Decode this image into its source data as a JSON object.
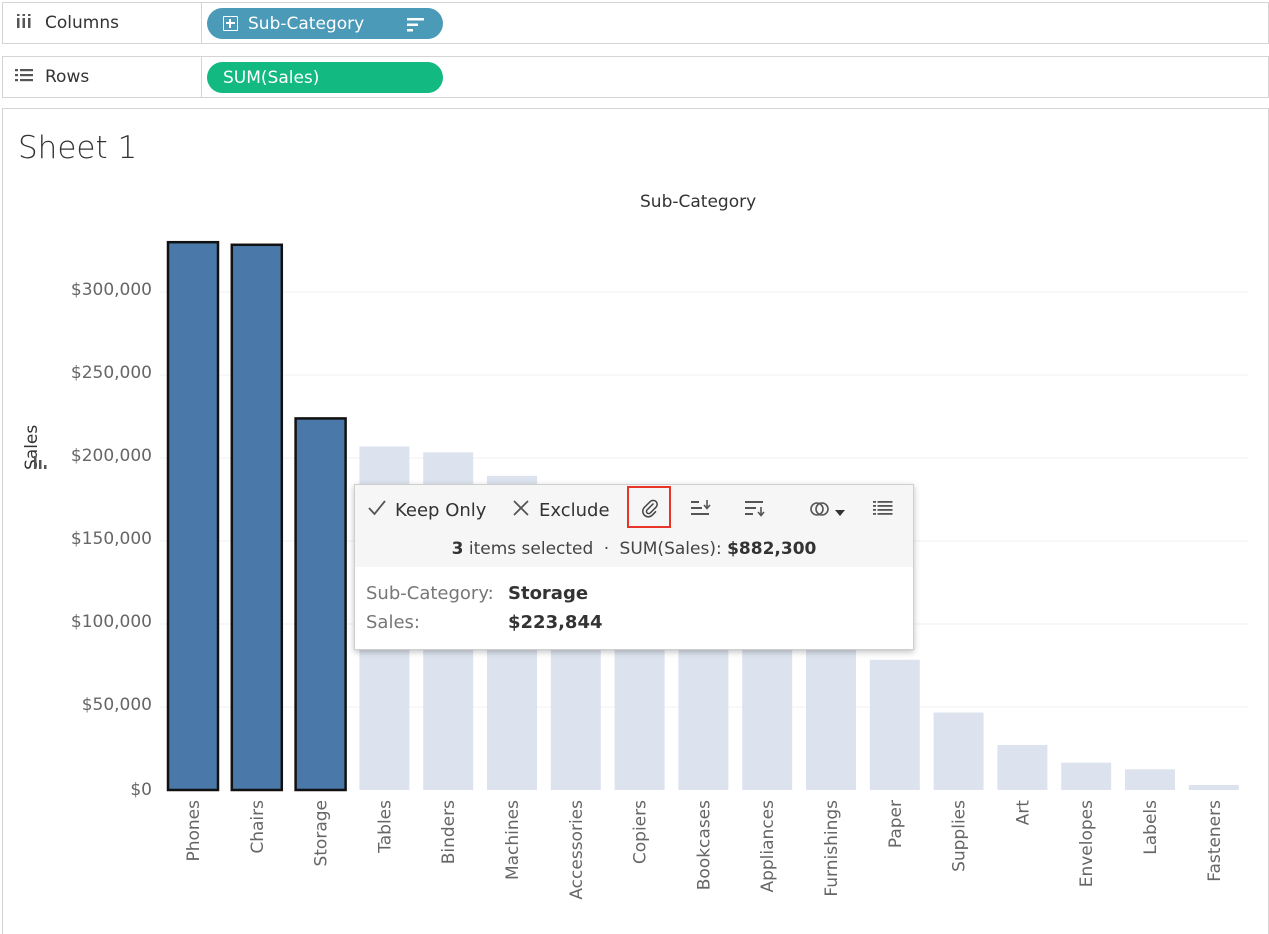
{
  "shelves": {
    "columns": {
      "label": "Columns",
      "pill": "Sub-Category"
    },
    "rows": {
      "label": "Rows",
      "pill": "SUM(Sales)"
    }
  },
  "sheet": {
    "title": "Sheet 1"
  },
  "colors": {
    "selected": "#4a79a9",
    "unselected": "#dce3ee",
    "columns_pill": "#4a9ab8",
    "rows_pill": "#12b981",
    "highlight": "#e8352a"
  },
  "chart_data": {
    "type": "bar",
    "title": "Sub-Category",
    "ylabel": "Sales",
    "yticks": [
      "$0",
      "$50,000",
      "$100,000",
      "$150,000",
      "$200,000",
      "$250,000",
      "$300,000"
    ],
    "ylim": [
      0,
      330007
    ],
    "categories": [
      "Phones",
      "Chairs",
      "Storage",
      "Tables",
      "Binders",
      "Machines",
      "Accessories",
      "Copiers",
      "Bookcases",
      "Appliances",
      "Furnishings",
      "Paper",
      "Supplies",
      "Art",
      "Envelopes",
      "Labels",
      "Fasteners"
    ],
    "values": [
      330007,
      328449,
      223844,
      206966,
      203413,
      189239,
      167380,
      149528,
      114880,
      107532,
      91705,
      78479,
      46674,
      27119,
      16476,
      12486,
      3024
    ],
    "selected": [
      "Phones",
      "Chairs",
      "Storage"
    ]
  },
  "tooltip": {
    "keep_only": "Keep Only",
    "exclude": "Exclude",
    "count": "3",
    "items_text": "items selected",
    "sep": "·",
    "sum_label": "SUM(Sales):",
    "sum_value": "$882,300",
    "row1_key": "Sub-Category:",
    "row1_value": "Storage",
    "row2_key": "Sales:",
    "row2_value": "$223,844",
    "icons": [
      "check-icon",
      "close-icon",
      "paperclip-icon",
      "sort-ascending-icon",
      "sort-descending-icon",
      "group-icon",
      "dropdown-arrow-icon",
      "view-data-icon"
    ]
  }
}
